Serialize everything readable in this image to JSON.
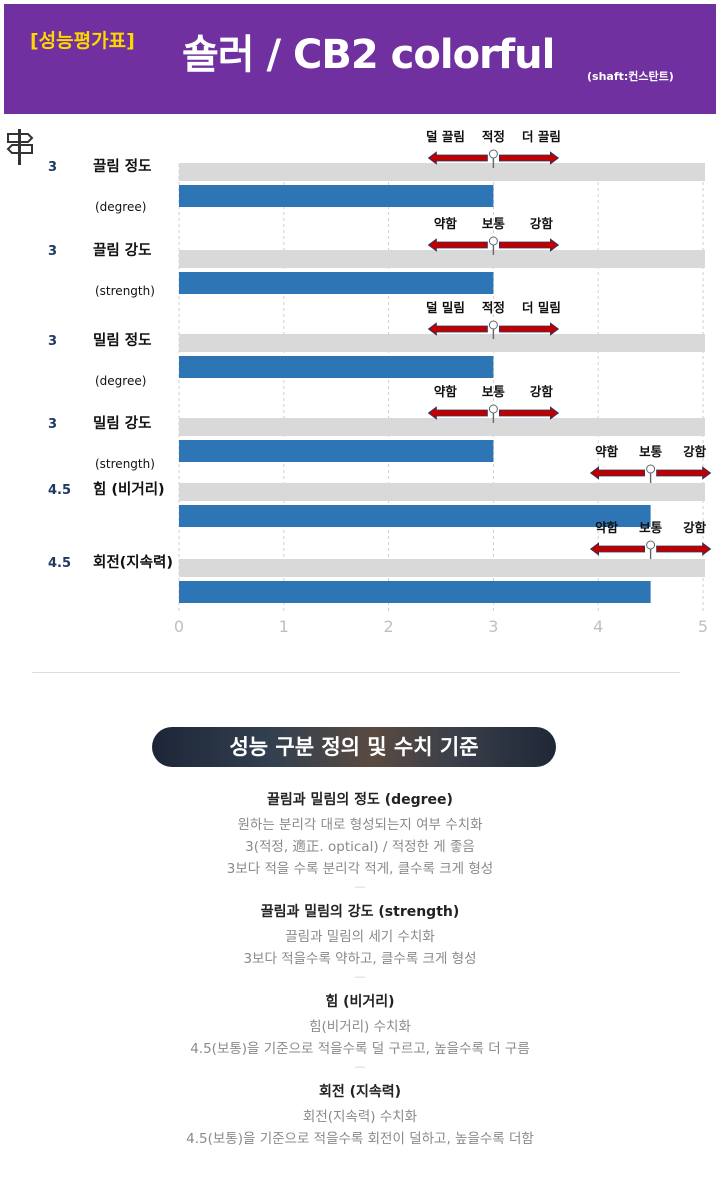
{
  "header": {
    "tag": "[성능평가표]",
    "title": "숄러 / CB2 colorful",
    "shaft": "(shaft:컨스탄트)"
  },
  "chart_data": {
    "type": "bar",
    "orientation": "horizontal",
    "xlim": [
      0,
      5
    ],
    "xticks": [
      "0",
      "1",
      "2",
      "3",
      "4",
      "5"
    ],
    "grid": true,
    "categories": [
      {
        "value_label": "3",
        "label": "끌림 정도",
        "sub": "(degree)",
        "value": 3,
        "scale": {
          "left": "덜 끌림",
          "mid": "적정",
          "right": "더 끌림",
          "mid_value": 3
        }
      },
      {
        "value_label": "3",
        "label": "끌림 강도",
        "sub": "(strength)",
        "value": 3,
        "scale": {
          "left": "약함",
          "mid": "보통",
          "right": "강함",
          "mid_value": 3
        }
      },
      {
        "value_label": "3",
        "label": "밀림 정도",
        "sub": "(degree)",
        "value": 3,
        "scale": {
          "left": "덜 밀림",
          "mid": "적정",
          "right": "더 밀림",
          "mid_value": 3
        }
      },
      {
        "value_label": "3",
        "label": "밀림 강도",
        "sub": "(strength)",
        "value": 3,
        "scale": {
          "left": "약함",
          "mid": "보통",
          "right": "강함",
          "mid_value": 3
        }
      },
      {
        "value_label": "4.5",
        "label": "힘 (비거리)",
        "sub": "",
        "value": 4.5,
        "scale": {
          "left": "약함",
          "mid": "보통",
          "right": "강함",
          "mid_value": 4.5
        }
      },
      {
        "value_label": "4.5",
        "label": "회전(지속력)",
        "sub": "",
        "value": 4.5,
        "scale": {
          "left": "약함",
          "mid": "보통",
          "right": "강함",
          "mid_value": 4.5
        }
      }
    ],
    "colors": {
      "bar": "#2e75b6",
      "track": "#d9d9d9",
      "arrow": "#c00000",
      "label_value": "#1f3864",
      "tick": "#bfbfbf"
    }
  },
  "banner": "성능 구분 정의 및 수치 기준",
  "definitions": [
    {
      "title": "끌림과 밀림의 정도 (degree)",
      "lines": [
        "원하는 분리각 대로 형성되는지 여부 수치화",
        "3(적정, 適正. optical) / 적정한 게 좋음",
        "3보다 적을 수록 분리각 적게, 클수록 크게 형성"
      ]
    },
    {
      "title": "끌림과 밀림의 강도 (strength)",
      "lines": [
        "끌림과 밀림의 세기 수치화",
        "3보다 적을수록 약하고, 클수록 크게 형성"
      ]
    },
    {
      "title": "힘 (비거리)",
      "lines": [
        "힘(비거리) 수치화",
        "4.5(보통)을 기준으로 적을수록 덜 구르고, 높을수록 더 구름"
      ]
    },
    {
      "title": "회전 (지속력)",
      "lines": [
        "회전(지속력) 수치화",
        "4.5(보통)을 기준으로 적을수록 회전이 덜하고, 높을수록 더함"
      ]
    }
  ]
}
